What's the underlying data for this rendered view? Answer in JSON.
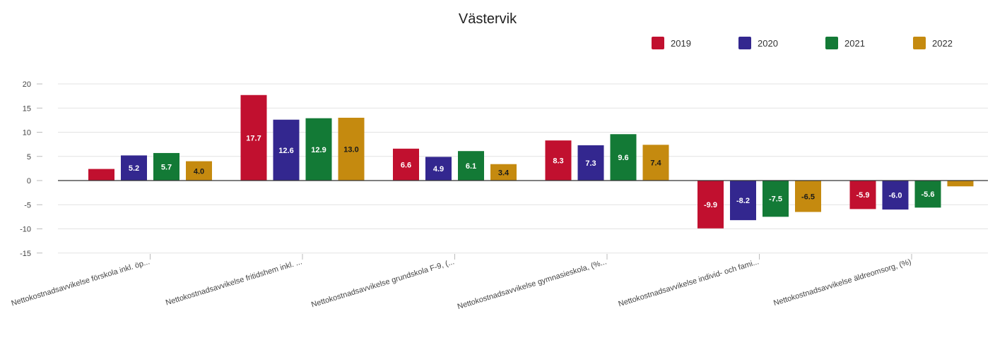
{
  "chart_data": {
    "type": "bar",
    "title": "Västervik",
    "categories": [
      "Nettokostnadsavvikelse förskola inkl. öp...",
      "Nettokostnadsavvikelse fritidshem inkl. ...",
      "Nettokostnadsavvikelse grundskola F-9, (...",
      "Nettokostnadsavvikelse gymnasieskola, (%...",
      "Nettokostnadsavvikelse individ- och fami...",
      "Nettokostnadsavvikelse äldreomsorg, (%)"
    ],
    "series": [
      {
        "name": "2019",
        "color": "#c1102f",
        "values": [
          2.4,
          17.7,
          6.6,
          8.3,
          -9.9,
          -5.9
        ],
        "labels": [
          "",
          "17.7",
          "6.6",
          "8.3",
          "-9.9",
          "-5.9"
        ]
      },
      {
        "name": "2020",
        "color": "#33278f",
        "values": [
          5.2,
          12.6,
          4.9,
          7.3,
          -8.2,
          -6.0
        ],
        "labels": [
          "5.2",
          "12.6",
          "4.9",
          "7.3",
          "-8.2",
          "-6.0"
        ]
      },
      {
        "name": "2021",
        "color": "#137a36",
        "values": [
          5.7,
          12.9,
          6.1,
          9.6,
          -7.5,
          -5.6
        ],
        "labels": [
          "5.7",
          "12.9",
          "6.1",
          "9.6",
          "-7.5",
          "-5.6"
        ]
      },
      {
        "name": "2022",
        "color": "#c58a0f",
        "values": [
          4.0,
          13.0,
          3.4,
          7.4,
          -6.5,
          -1.2
        ],
        "labels": [
          "4.0",
          "13.0",
          "3.4",
          "7.4",
          "-6.5",
          ""
        ]
      }
    ],
    "yticks": [
      20,
      15,
      10,
      5,
      0,
      -5,
      -10,
      -15
    ],
    "ylim": [
      -15,
      20
    ],
    "grid": true,
    "legend_position": "top-right",
    "xlabel": "",
    "ylabel": ""
  }
}
